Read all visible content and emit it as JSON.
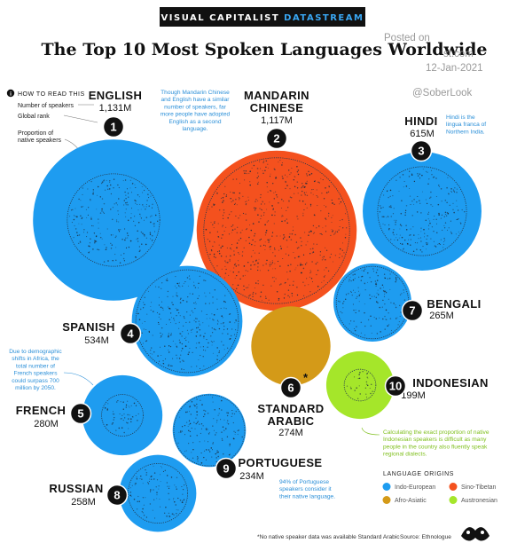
{
  "header": {
    "banner_prefix": "VISUAL CAPITALIST",
    "banner_accent": "DATASTREAM",
    "title": "The Top 10 Most Spoken Languages Worldwide"
  },
  "watermark": {
    "line1": "Posted on",
    "line2": "st.com",
    "date": "12-Jan-2021",
    "handle": "@SoberLook"
  },
  "how_to_read": {
    "title": "HOW TO READ THIS",
    "labels": [
      "Number of speakers",
      "Global rank",
      "Proportion of",
      "native speakers"
    ]
  },
  "chart_data": {
    "type": "bubble",
    "title": "The Top 10 Most Spoken Languages Worldwide",
    "units": "M",
    "languages": [
      {
        "rank": 1,
        "name": "ENGLISH",
        "speakers_label": "1,131M",
        "speakers": 1131,
        "native_share": 0.33,
        "origin": "Indo-European"
      },
      {
        "rank": 2,
        "name_lines": [
          "MANDARIN",
          "CHINESE"
        ],
        "speakers_label": "1,117M",
        "speakers": 1117,
        "native_share": 0.83,
        "origin": "Sino-Tibetan"
      },
      {
        "rank": 3,
        "name": "HINDI",
        "speakers_label": "615M",
        "speakers": 615,
        "native_share": 0.56,
        "origin": "Indo-European"
      },
      {
        "rank": 4,
        "name": "SPANISH",
        "speakers_label": "534M",
        "speakers": 534,
        "native_share": 0.86,
        "origin": "Indo-European"
      },
      {
        "rank": 5,
        "name": "FRENCH",
        "speakers_label": "280M",
        "speakers": 280,
        "native_share": 0.27,
        "origin": "Indo-European"
      },
      {
        "rank": 6,
        "name_lines": [
          "STANDARD",
          "ARABIC"
        ],
        "speakers_label": "274M",
        "speakers": 274,
        "native_share": 0,
        "origin": "Afro-Asiatic",
        "asterisk": "*"
      },
      {
        "rank": 7,
        "name": "BENGALI",
        "speakers_label": "265M",
        "speakers": 265,
        "native_share": 0.86,
        "origin": "Indo-European"
      },
      {
        "rank": 8,
        "name": "RUSSIAN",
        "speakers_label": "258M",
        "speakers": 258,
        "native_share": 0.6,
        "origin": "Indo-European"
      },
      {
        "rank": 9,
        "name": "PORTUGUESE",
        "speakers_label": "234M",
        "speakers": 234,
        "native_share": 0.94,
        "origin": "Indo-European"
      },
      {
        "rank": 10,
        "name": "INDONESIAN",
        "speakers_label": "199M",
        "speakers": 199,
        "native_share": 0.22,
        "origin": "Austronesian"
      }
    ],
    "legend": {
      "title": "LANGUAGE ORIGINS",
      "items": [
        {
          "label": "Indo-European",
          "color": "#1e9cf0"
        },
        {
          "label": "Sino-Tibetan",
          "color": "#f4511e"
        },
        {
          "label": "Afro-Asiatic",
          "color": "#d49a18"
        },
        {
          "label": "Austronesian",
          "color": "#a5e62a"
        }
      ]
    }
  },
  "notes": {
    "english": [
      "Though Mandarin Chinese",
      "and English have a similar",
      "number of speakers, far",
      "more people have adopted",
      "English as a second",
      "language."
    ],
    "hindi": [
      "Hindi is the",
      "lingua franca of",
      "Northern India."
    ],
    "french": [
      "Due to demographic",
      "shifts in Africa, the",
      "total number of",
      "French speakers",
      "could surpass 700",
      "million by 2050."
    ],
    "portuguese": [
      "94% of Portuguese",
      "speakers consider it",
      "their native language."
    ],
    "indonesian": [
      "Calculating the exact proportion of native",
      "Indonesian speakers is difficult as many",
      "people in the country also fluently speak",
      "regional dialects."
    ]
  },
  "footer": {
    "footnote": "*No native speaker data was available Standard Arabic",
    "source": "Source: Ethnologue"
  }
}
